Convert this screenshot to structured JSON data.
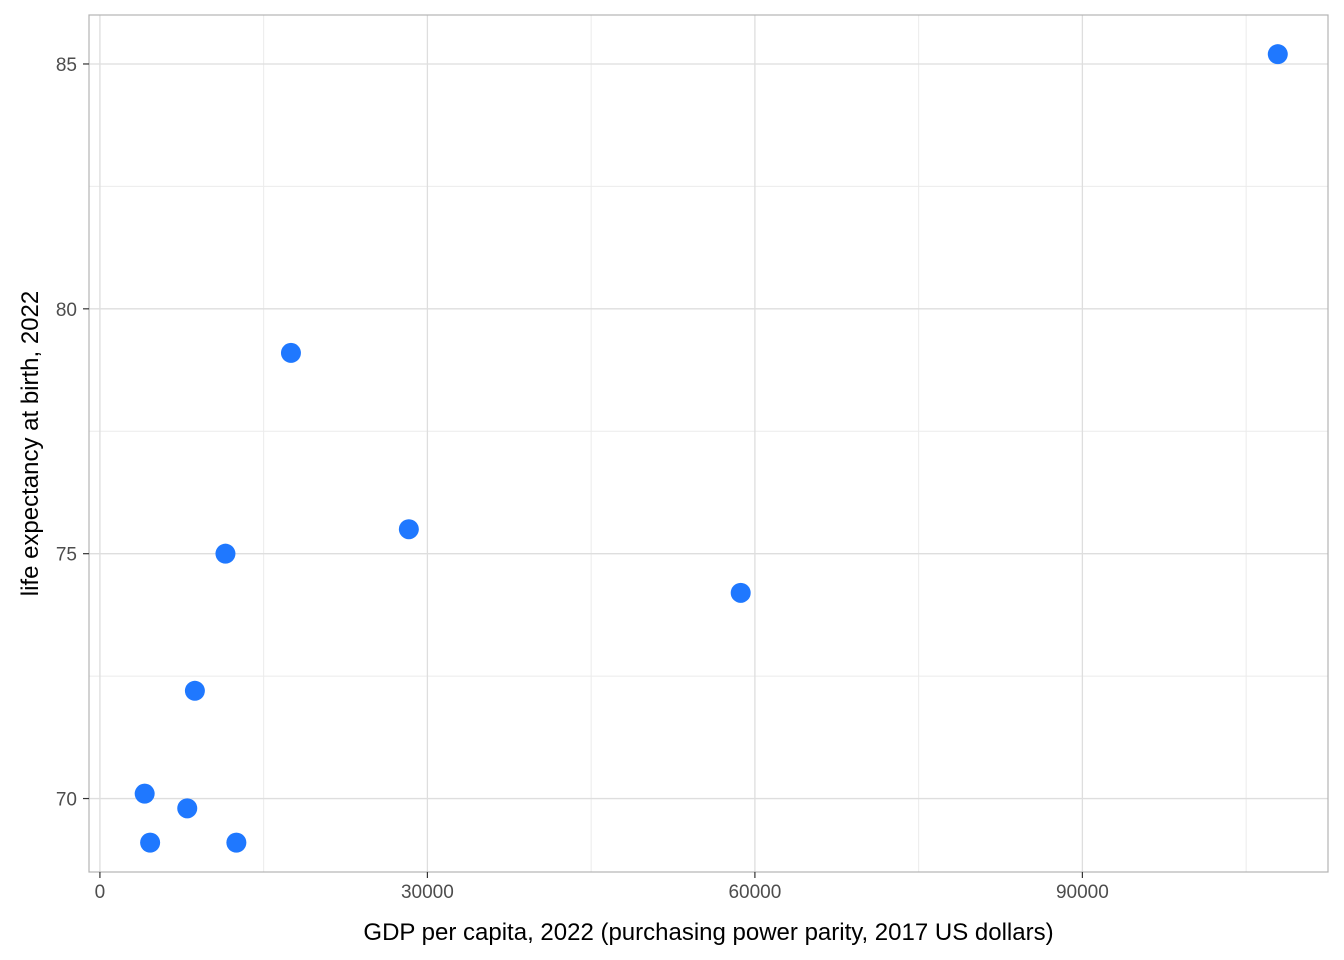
{
  "chart_data": {
    "type": "scatter",
    "title": "",
    "xlabel": "GDP per capita, 2022 (purchasing power parity, 2017 US dollars)",
    "ylabel": "life expectancy at birth, 2022",
    "xlim": [
      -1000,
      112500
    ],
    "ylim": [
      68.5,
      86.0
    ],
    "x_ticks": [
      0,
      30000,
      60000,
      90000
    ],
    "x_tick_labels": [
      "0",
      "30000",
      "60000",
      "90000"
    ],
    "y_ticks": [
      70,
      75,
      80,
      85
    ],
    "y_tick_labels": [
      "70",
      "75",
      "80",
      "85"
    ],
    "grid": true,
    "point_color": "#1f78ff",
    "points": [
      {
        "x": 4100,
        "y": 70.1
      },
      {
        "x": 4600,
        "y": 69.1
      },
      {
        "x": 8000,
        "y": 69.8
      },
      {
        "x": 8700,
        "y": 72.2
      },
      {
        "x": 11500,
        "y": 75.0
      },
      {
        "x": 12500,
        "y": 69.1
      },
      {
        "x": 17500,
        "y": 79.1
      },
      {
        "x": 28300,
        "y": 75.5
      },
      {
        "x": 58700,
        "y": 74.2
      },
      {
        "x": 107900,
        "y": 85.2
      }
    ]
  }
}
